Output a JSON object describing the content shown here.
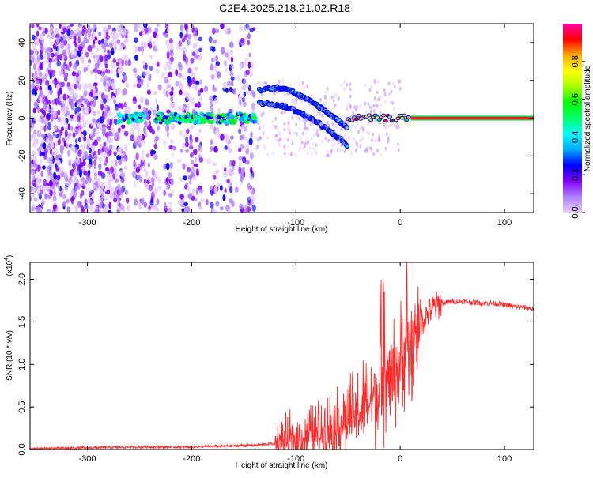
{
  "title": "C2E4.2025.218.21.02.R18",
  "chart_data": [
    {
      "type": "heatmap",
      "title": "C2E4.2025.218.21.02.R18",
      "xlabel": "Height of straight line (km)",
      "ylabel": "Frequency (Hz)",
      "xlim": [
        -355,
        128
      ],
      "ylim": [
        -50,
        50
      ],
      "x_ticks": [
        -300,
        -200,
        -100,
        0,
        100
      ],
      "y_ticks": [
        -40,
        -20,
        0,
        20,
        40
      ],
      "colorbar": {
        "label": "Normalized spectral amplitude",
        "range": [
          0,
          1
        ],
        "ticks": [
          0.0,
          0.2,
          0.4,
          0.6,
          0.8
        ],
        "tick_labels": [
          "0.0",
          "0.2",
          "0.4",
          "0.6",
          "0.8"
        ],
        "colormap": [
          "#e6ccff",
          "#b080ff",
          "#8000ff",
          "#0000ff",
          "#00aaff",
          "#00ffff",
          "#00ff66",
          "#00ff00",
          "#aaff00",
          "#ffff00",
          "#ffaa00",
          "#ff0000",
          "#ff00aa"
        ]
      },
      "features": {
        "noise_region_x": [
          -355,
          -140
        ],
        "tone_band_x": [
          10,
          128
        ],
        "tone_band_freq": 0,
        "branches": [
          {
            "x": [
              -135,
              -120,
              -110,
              -100,
              -90,
              -80,
              -70,
              -60,
              -50
            ],
            "y": [
              15,
              16,
              16,
              13,
              10,
              7,
              3,
              -1,
              -5
            ]
          },
          {
            "x": [
              -135,
              -120,
              -110,
              -100,
              -90,
              -80,
              -70,
              -60,
              -50
            ],
            "y": [
              8,
              7,
              6,
              4,
              1,
              -2,
              -6,
              -10,
              -15
            ]
          }
        ]
      }
    },
    {
      "type": "line",
      "xlabel": "Height of straight line (km)",
      "ylabel": "SNR (10 * v/v)",
      "y_multiplier": "(x10",
      "y_multiplier_exp": "4",
      "xlim": [
        -355,
        128
      ],
      "ylim": [
        0,
        2.2
      ],
      "x_ticks": [
        -300,
        -200,
        -100,
        0,
        100
      ],
      "y_ticks": [
        0.0,
        0.5,
        1.0,
        1.5,
        2.0
      ],
      "y_tick_labels": [
        "0.0",
        "0.5",
        "1.0",
        "1.5",
        "2.0"
      ],
      "series": [
        {
          "color": "#ff2a2a",
          "x": [
            -355,
            -300,
            -250,
            -200,
            -170,
            -140,
            -120,
            -100,
            -80,
            -60,
            -40,
            -30,
            -20,
            -10,
            0,
            10,
            20,
            30,
            40,
            50,
            60,
            70,
            80,
            90,
            100,
            110,
            120,
            128
          ],
          "y": [
            0.01,
            0.02,
            0.03,
            0.03,
            0.04,
            0.05,
            0.07,
            0.12,
            0.2,
            0.3,
            0.45,
            0.55,
            0.7,
            0.85,
            1.0,
            1.25,
            1.5,
            1.65,
            1.72,
            1.74,
            1.74,
            1.73,
            1.72,
            1.72,
            1.7,
            1.68,
            1.67,
            1.65
          ]
        }
      ]
    }
  ]
}
